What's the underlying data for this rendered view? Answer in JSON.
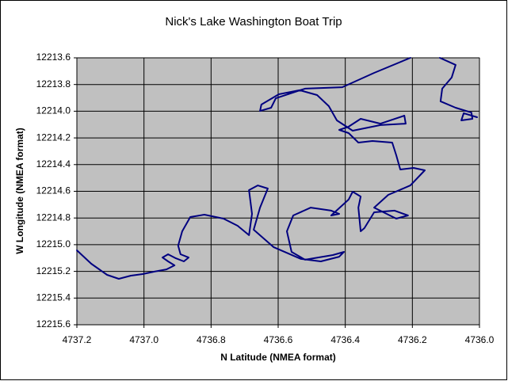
{
  "chart_data": {
    "type": "line",
    "title": "Nick's Lake Washington Boat Trip",
    "x_label": "N Latitude (NMEA format)",
    "y_label": "W Longitude  (NMEA format)",
    "color": "#000080",
    "grid": true,
    "xlim": [
      4737.2,
      4736.0
    ],
    "ylim": [
      12215.6,
      12213.6
    ],
    "xticks": [
      4737.2,
      {
        "value": 4737,
        "label": "4737.0"
      },
      4736.8,
      4736.6,
      4736.4,
      4736.2,
      {
        "value": 4736,
        "label": "4736.0"
      }
    ],
    "yticks": [
      12213.6,
      12213.8,
      {
        "value": 12214,
        "label": "12214.0"
      },
      12214.2,
      12214.4,
      12214.6,
      12214.8,
      {
        "value": 12215,
        "label": "12215.0"
      },
      12215.2,
      12215.4,
      12215.6
    ],
    "x": [
      4737.2,
      4737.157,
      4737.11,
      4737.075,
      4737.039,
      4737.004,
      4736.969,
      4736.933,
      4736.909,
      4736.928,
      4736.945,
      4736.928,
      4736.905,
      4736.881,
      4736.867,
      4736.891,
      4736.898,
      4736.886,
      4736.862,
      4736.82,
      4736.763,
      4736.721,
      4736.687,
      4736.678,
      4736.687,
      4736.661,
      4736.631,
      4736.654,
      4736.673,
      4736.614,
      4736.532,
      4736.473,
      4736.418,
      4736.404,
      4736.437,
      4736.52,
      4736.56,
      4736.574,
      4736.555,
      4736.503,
      4736.442,
      4736.418,
      4736.442,
      4736.39,
      4736.378,
      4736.354,
      4736.361,
      4736.354,
      4736.343,
      4736.314,
      4736.253,
      4736.213,
      4736.248,
      4736.314,
      4736.272,
      4736.206,
      4736.163,
      4736.196,
      4736.236,
      4736.248,
      4736.26,
      4736.319,
      4736.361,
      4736.39,
      4736.418,
      4736.39,
      4736.354,
      4736.295,
      4736.224,
      4736.22,
      4736.295,
      4736.378,
      4736.425,
      4736.449,
      4736.484,
      4736.536,
      4736.598,
      4736.65,
      4736.654,
      4736.621,
      4736.607,
      4736.52,
      4736.409,
      4736.314,
      4736.206,
      4736.162,
      4736.118,
      4736.071,
      4736.083,
      4736.111,
      4736.116,
      4736.071,
      4736.024,
      4736.021,
      4736.054,
      4736.047,
      4736.007
    ],
    "values": [
      12215.042,
      12215.143,
      12215.226,
      12215.256,
      12215.232,
      12215.22,
      12215.202,
      12215.185,
      12215.155,
      12215.125,
      12215.096,
      12215.072,
      12215.102,
      12215.125,
      12215.096,
      12215.072,
      12215.007,
      12214.9,
      12214.793,
      12214.775,
      12214.805,
      12214.858,
      12214.929,
      12214.769,
      12214.591,
      12214.556,
      12214.579,
      12214.722,
      12214.888,
      12215.018,
      12215.107,
      12215.125,
      12215.09,
      12215.054,
      12215.078,
      12215.113,
      12215.054,
      12214.9,
      12214.781,
      12214.722,
      12214.745,
      12214.769,
      12214.781,
      12214.662,
      12214.603,
      12214.639,
      12214.722,
      12214.9,
      12214.876,
      12214.757,
      12214.745,
      12214.781,
      12214.805,
      12214.722,
      12214.627,
      12214.556,
      12214.443,
      12214.425,
      12214.437,
      12214.33,
      12214.235,
      12214.223,
      12214.235,
      12214.164,
      12214.14,
      12214.116,
      12214.057,
      12214.093,
      12214.033,
      12214.093,
      12214.104,
      12214.146,
      12214.069,
      12213.962,
      12213.879,
      12213.843,
      12213.873,
      12213.95,
      12213.998,
      12213.974,
      12213.903,
      12213.831,
      12213.82,
      12213.713,
      12213.6,
      null,
      12213.6,
      12213.653,
      12213.748,
      12213.831,
      12213.926,
      12213.974,
      12214.01,
      12214.057,
      12214.069,
      12214.015,
      12214.045
    ]
  }
}
